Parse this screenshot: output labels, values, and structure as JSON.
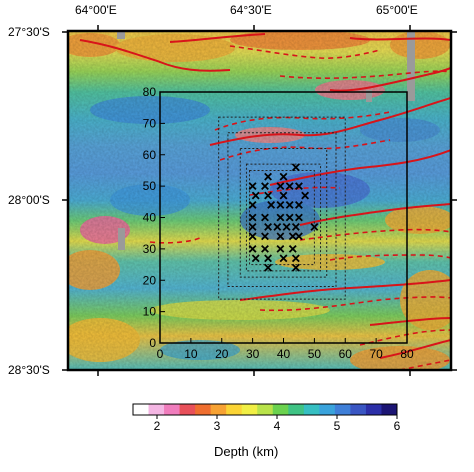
{
  "map": {
    "lon_labels": [
      "64°00'E",
      "64°30'E",
      "65°00'E"
    ],
    "lat_labels": [
      "27°30'S",
      "28°00'S",
      "28°30'S"
    ],
    "grid_axis": {
      "x_ticks": [
        "0",
        "10",
        "20",
        "30",
        "40",
        "50",
        "60",
        "70",
        "80"
      ],
      "y_ticks": [
        "0",
        "10",
        "20",
        "30",
        "40",
        "50",
        "60",
        "70",
        "80"
      ],
      "range": [
        0,
        80
      ]
    },
    "stations": [
      [
        44,
        56
      ],
      [
        35,
        53
      ],
      [
        40,
        53
      ],
      [
        30,
        50
      ],
      [
        34,
        50
      ],
      [
        39,
        50
      ],
      [
        42,
        50
      ],
      [
        45,
        50
      ],
      [
        31,
        47
      ],
      [
        35,
        47
      ],
      [
        40,
        47
      ],
      [
        47,
        47
      ],
      [
        30,
        44
      ],
      [
        36,
        44
      ],
      [
        39,
        44
      ],
      [
        42,
        44
      ],
      [
        45,
        44
      ],
      [
        30,
        40
      ],
      [
        34,
        40
      ],
      [
        39,
        40
      ],
      [
        42,
        40
      ],
      [
        45,
        40
      ],
      [
        30,
        37
      ],
      [
        35,
        37
      ],
      [
        38,
        37
      ],
      [
        41,
        37
      ],
      [
        44,
        37
      ],
      [
        50,
        37
      ],
      [
        30,
        34
      ],
      [
        34,
        34
      ],
      [
        39,
        34
      ],
      [
        43,
        34
      ],
      [
        45,
        34
      ],
      [
        30,
        30
      ],
      [
        34,
        30
      ],
      [
        39,
        30
      ],
      [
        43,
        30
      ],
      [
        31,
        27
      ],
      [
        35,
        27
      ],
      [
        40,
        27
      ],
      [
        44,
        27
      ],
      [
        35,
        24
      ],
      [
        44,
        24
      ]
    ],
    "nested_boxes": [
      [
        19,
        14,
        60,
        72
      ],
      [
        22,
        18,
        57,
        67
      ],
      [
        26,
        21,
        54,
        62
      ],
      [
        28,
        23,
        52,
        57
      ],
      [
        29,
        25,
        50,
        55
      ]
    ]
  },
  "colorbar": {
    "title": "Depth (km)",
    "ticks": [
      "2",
      "3",
      "4",
      "5",
      "6"
    ],
    "range": [
      1.6,
      6.0
    ],
    "colors": [
      "#ffffff",
      "#f4b6e3",
      "#f07dbd",
      "#e8505a",
      "#ef6e2f",
      "#f7a233",
      "#fbd435",
      "#f1ef45",
      "#b9e34a",
      "#6bd24f",
      "#3fc384",
      "#36bfc2",
      "#3aa3dc",
      "#3f7fd8",
      "#3a56c3",
      "#2c2fa8",
      "#1c1574"
    ]
  }
}
